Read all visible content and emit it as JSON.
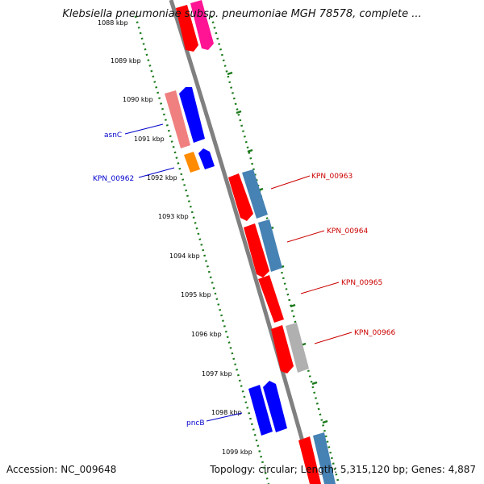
{
  "title": "Klebsiella pneumoniae subsp. pneumoniae MGH 78578, complete ...",
  "footer": {
    "accession": "Accession: NC_009648",
    "summary": "Topology: circular; Length: 5,315,120 bp; Genes: 4,887"
  },
  "kbp_labels": [
    "1088 kbp",
    "1089 kbp",
    "1090 kbp",
    "1091 kbp",
    "1092 kbp",
    "1093 kbp",
    "1094 kbp",
    "1095 kbp",
    "1096 kbp",
    "1097 kbp",
    "1098 kbp",
    "1099 kbp"
  ],
  "gene_labels": [
    {
      "text": "asnC",
      "color": "#0000cc"
    },
    {
      "text": "KPN_00962",
      "color": "#0000cc"
    },
    {
      "text": "KPN_00963",
      "color": "#cc0000"
    },
    {
      "text": "KPN_00964",
      "color": "#cc0000"
    },
    {
      "text": "KPN_00965",
      "color": "#cc0000"
    },
    {
      "text": "KPN_00966",
      "color": "#cc0000"
    },
    {
      "text": "pncB",
      "color": "#0000cc"
    }
  ],
  "colors": {
    "backbone": "#808080",
    "tick_green": "#1a7a1a",
    "gene_red": "#ff0000",
    "gene_blue": "#0000ff",
    "gene_steelblue": "#4682b4",
    "gene_pink": "#ff1493",
    "gene_salmon": "#f08080",
    "gene_orange": "#ff8c00",
    "gene_gray": "#b0b0b0"
  }
}
